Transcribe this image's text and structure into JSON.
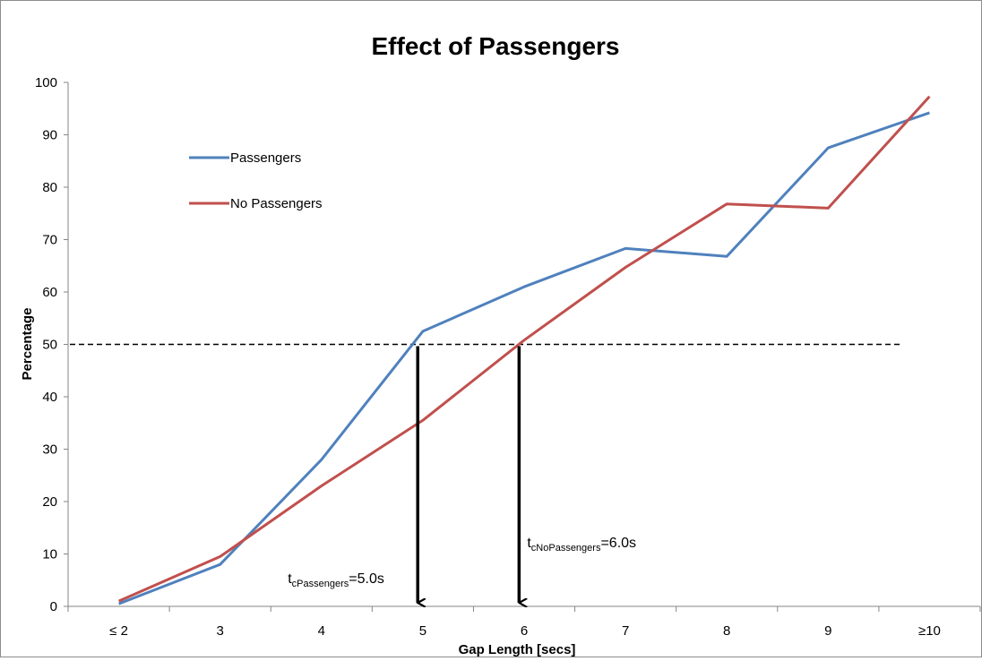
{
  "chart_data": {
    "type": "line",
    "title": "Effect of Passengers",
    "xlabel": "Gap Length [secs]",
    "ylabel": "Percentage",
    "categories": [
      "≤ 2",
      "3",
      "4",
      "5",
      "6",
      "7",
      "8",
      "9",
      "≥10"
    ],
    "ylim": [
      0,
      100
    ],
    "yticks": [
      0,
      10,
      20,
      30,
      40,
      50,
      60,
      70,
      80,
      90,
      100
    ],
    "grid": false,
    "legend_position": "top-left",
    "series": [
      {
        "name": "Passengers",
        "color": "#4f81bd",
        "values": [
          0.5,
          8,
          28,
          52.5,
          61,
          68.3,
          66.8,
          87.5,
          94.2
        ]
      },
      {
        "name": "No Passengers",
        "color": "#c0504d",
        "values": [
          1,
          9.5,
          23,
          35.5,
          50.8,
          64.7,
          76.8,
          76,
          97.3
        ]
      }
    ],
    "threshold": {
      "y": 50,
      "style": "dashed",
      "color": "#000000"
    },
    "annotations": [
      {
        "t": "t",
        "sub": "cPassengers",
        "rest": "=5.0s",
        "x": 4.95
      },
      {
        "t": "t",
        "sub": "cNoPassengers",
        "rest": "=6.0s",
        "x": 5.95
      }
    ]
  }
}
